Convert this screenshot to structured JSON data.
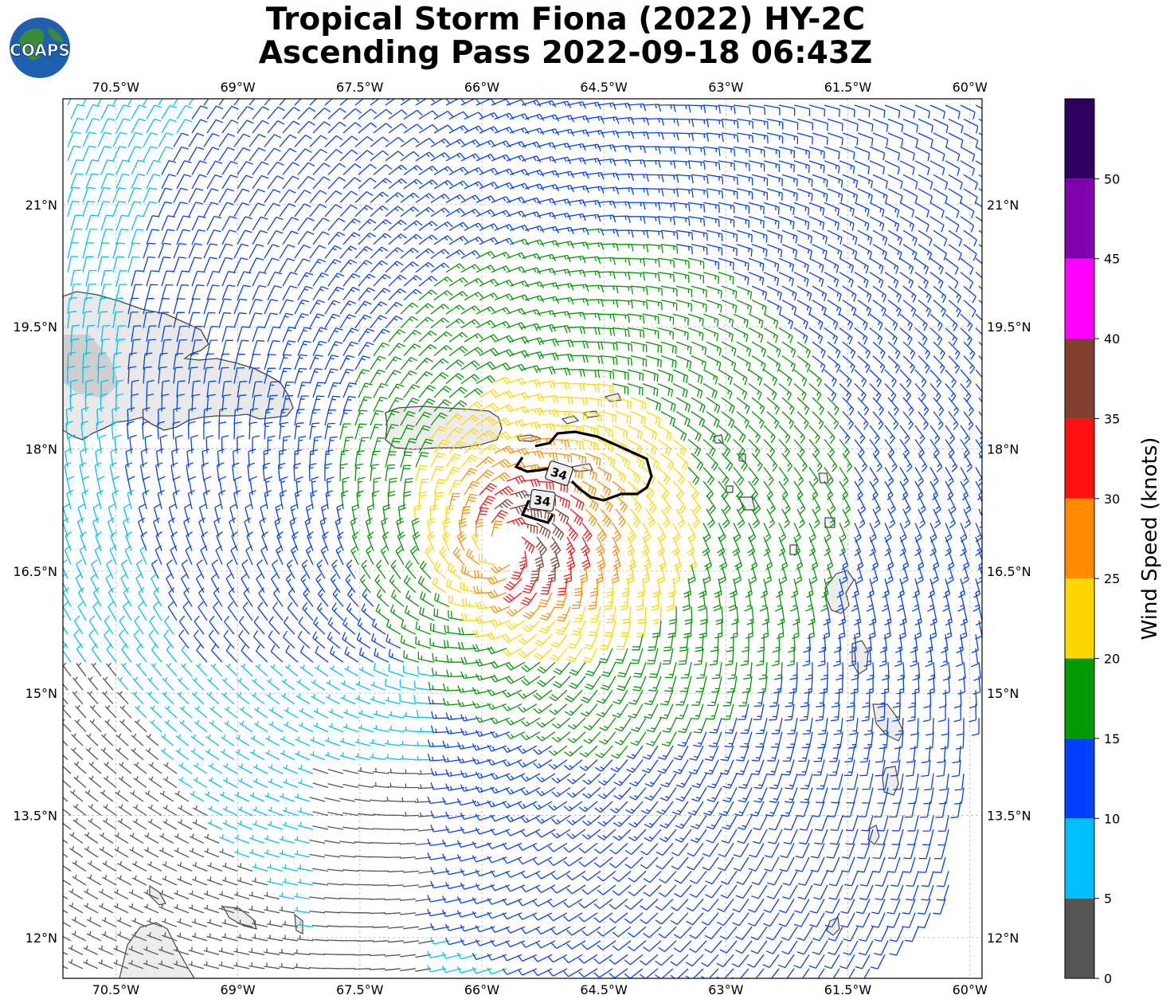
{
  "title": {
    "line1": "Tropical Storm Fiona (2022) HY-2C",
    "line2": "Ascending Pass 2022-09-18 06:43Z"
  },
  "logo": {
    "text": "COAPS",
    "icon": "globe-logo-icon"
  },
  "map": {
    "lon_range": [
      -71.15,
      -59.85
    ],
    "lat_range": [
      11.5,
      22.3
    ],
    "lon_ticks": [
      "70.5°W",
      "69°W",
      "67.5°W",
      "66°W",
      "64.5°W",
      "63°W",
      "61.5°W",
      "60°W"
    ],
    "lon_tick_values": [
      -70.5,
      -69,
      -67.5,
      -66,
      -64.5,
      -63,
      -61.5,
      -60
    ],
    "lat_ticks": [
      "21°N",
      "19.5°N",
      "18°N",
      "16.5°N",
      "15°N",
      "13.5°N",
      "12°N"
    ],
    "lat_tick_values": [
      21,
      19.5,
      18,
      16.5,
      15,
      13.5,
      12
    ],
    "grid": true,
    "storm_center": {
      "lon": -65.7,
      "lat": 16.8
    },
    "wind_radius_contour_label": "34",
    "wind_radius_contour_labels": [
      "34",
      "34"
    ]
  },
  "colorbar": {
    "label": "Wind Speed (knots)",
    "bounds": [
      0,
      5,
      10,
      15,
      20,
      25,
      30,
      35,
      40,
      45,
      50,
      55
    ],
    "tick_labels": [
      "0",
      "5",
      "10",
      "15",
      "20",
      "25",
      "30",
      "35",
      "40",
      "45",
      "50"
    ],
    "colors": [
      "#555555",
      "#00bfff",
      "#0040ff",
      "#009900",
      "#ffd700",
      "#ff8c00",
      "#ff1010",
      "#804030",
      "#ff00ff",
      "#8000b0",
      "#2e0060"
    ]
  }
}
